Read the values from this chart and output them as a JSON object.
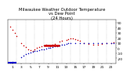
{
  "title": "Milwaukee Weather Outdoor Temperature\nvs Dew Point\n(24 Hours)",
  "background_color": "#ffffff",
  "xlim": [
    0,
    24
  ],
  "ylim": [
    -30,
    55
  ],
  "temp_data": [
    [
      0.5,
      42
    ],
    [
      1.0,
      36
    ],
    [
      1.5,
      30
    ],
    [
      2.0,
      24
    ],
    [
      3.0,
      10
    ],
    [
      3.5,
      5
    ],
    [
      4.0,
      2
    ],
    [
      4.5,
      -2
    ],
    [
      5.0,
      -4
    ],
    [
      5.5,
      -5
    ],
    [
      6.0,
      -2
    ],
    [
      6.5,
      0
    ],
    [
      7.0,
      2
    ],
    [
      7.5,
      4
    ],
    [
      8.0,
      5
    ],
    [
      8.5,
      6
    ],
    [
      9.0,
      5
    ],
    [
      9.5,
      4
    ],
    [
      10.0,
      6
    ],
    [
      10.5,
      8
    ],
    [
      11.5,
      12
    ],
    [
      12.0,
      14
    ],
    [
      13.0,
      16
    ],
    [
      13.5,
      17
    ],
    [
      14.0,
      18
    ],
    [
      14.5,
      18
    ],
    [
      15.0,
      17
    ],
    [
      15.5,
      16
    ],
    [
      16.0,
      14
    ],
    [
      17.0,
      10
    ],
    [
      18.0,
      8
    ],
    [
      19.0,
      7
    ],
    [
      20.0,
      6
    ],
    [
      21.0,
      8
    ],
    [
      22.0,
      9
    ],
    [
      23.0,
      10
    ],
    [
      23.5,
      11
    ]
  ],
  "dew_data": [
    [
      0.5,
      -28
    ],
    [
      1.0,
      -27
    ],
    [
      3.0,
      -18
    ],
    [
      3.5,
      -15
    ],
    [
      4.0,
      -12
    ],
    [
      4.5,
      -10
    ],
    [
      5.0,
      -8
    ],
    [
      5.5,
      -7
    ],
    [
      6.0,
      -6
    ],
    [
      6.5,
      -5
    ],
    [
      7.0,
      -4
    ],
    [
      7.5,
      -3
    ],
    [
      8.0,
      -2
    ],
    [
      8.5,
      -1
    ],
    [
      9.0,
      0
    ],
    [
      9.5,
      1
    ],
    [
      10.0,
      2
    ],
    [
      10.5,
      3
    ],
    [
      11.0,
      4
    ],
    [
      11.5,
      5
    ],
    [
      12.0,
      6
    ],
    [
      12.5,
      7
    ],
    [
      13.0,
      8
    ],
    [
      13.5,
      9
    ],
    [
      14.0,
      10
    ],
    [
      15.0,
      10
    ],
    [
      16.0,
      10
    ],
    [
      17.0,
      10
    ],
    [
      18.0,
      10
    ],
    [
      19.0,
      10
    ],
    [
      20.0,
      10
    ],
    [
      21.0,
      10
    ],
    [
      22.0,
      10
    ],
    [
      23.0,
      10
    ],
    [
      23.5,
      10
    ]
  ],
  "high_line": {
    "x_start": 8.0,
    "x_end": 11.5,
    "y": 5,
    "color": "#cc0000"
  },
  "blue_line": {
    "x_start": 0.0,
    "x_end": 2.0,
    "y": -28,
    "color": "#0000cc"
  },
  "temp_color": "#cc0000",
  "dew_color": "#0000bb",
  "grid_color": "#999999",
  "grid_positions": [
    2,
    4,
    6,
    8,
    10,
    12,
    14,
    16,
    18,
    20,
    22
  ],
  "ytick_positions": [
    -20,
    -10,
    0,
    10,
    20,
    30,
    40,
    50
  ],
  "ytick_labels": [
    "-20",
    "-10",
    "0",
    "10",
    "20",
    "30",
    "40",
    "50"
  ],
  "xtick_positions": [
    1,
    3,
    5,
    7,
    9,
    11,
    13,
    15,
    17,
    19,
    21,
    23
  ],
  "xtick_labels": [
    "1",
    "3",
    "5",
    "7",
    "9",
    "11",
    "13",
    "15",
    "17",
    "19",
    "21",
    "23"
  ],
  "title_fontsize": 3.8,
  "tick_fontsize": 3.2
}
